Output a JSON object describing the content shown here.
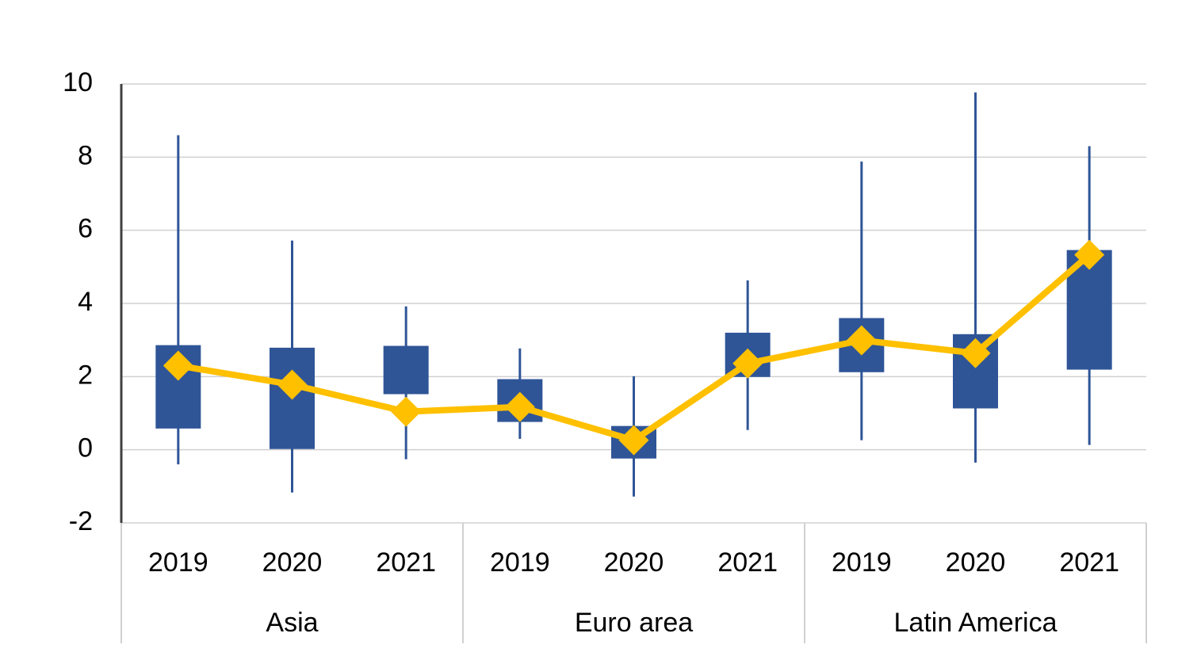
{
  "chart_data": {
    "type": "box",
    "categories": [
      "2019",
      "2020",
      "2021",
      "2019",
      "2020",
      "2021",
      "2019",
      "2020",
      "2021"
    ],
    "groups": [
      "Asia",
      "Euro area",
      "Latin America"
    ],
    "whisker_high": [
      8.6,
      5.72,
      3.92,
      2.77,
      2.01,
      4.63,
      7.88,
      9.77,
      8.3
    ],
    "whisker_low": [
      -0.4,
      -1.17,
      -0.26,
      0.3,
      -1.28,
      0.54,
      0.26,
      -0.35,
      0.13
    ],
    "box_high": [
      2.86,
      2.79,
      2.84,
      1.93,
      0.65,
      3.2,
      3.6,
      3.16,
      5.46
    ],
    "box_low": [
      0.58,
      0.02,
      1.52,
      0.76,
      -0.24,
      1.99,
      2.12,
      1.13,
      2.19
    ],
    "line_values": [
      2.3,
      1.78,
      1.04,
      1.17,
      0.26,
      2.36,
      2.99,
      2.64,
      5.33
    ],
    "box_color": "#2f5597",
    "line_color": "#ffc000",
    "ylim": [
      -2,
      10
    ],
    "yticks": [
      -2,
      0,
      2,
      4,
      6,
      8,
      10
    ],
    "grid": true
  }
}
